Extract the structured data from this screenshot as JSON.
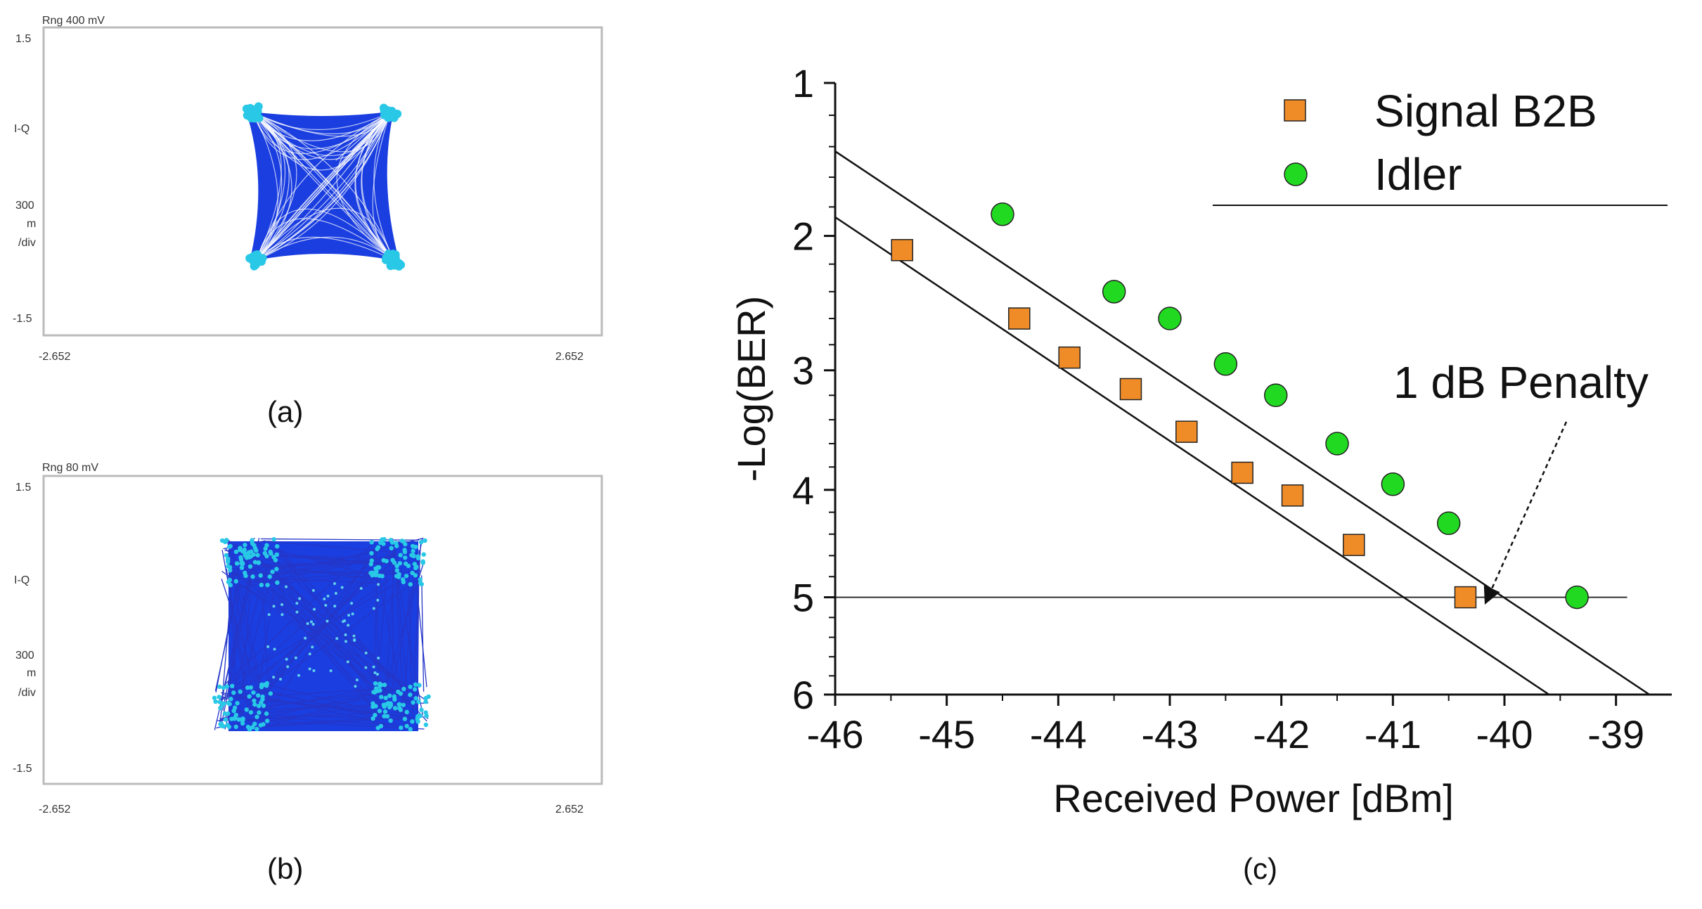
{
  "panel_a": {
    "range_label": "Rng 400 mV",
    "y_top": "1.5",
    "y_bottom": "-1.5",
    "x_left": "-2.652",
    "x_right": "2.652",
    "side_label_1": "I-Q",
    "side_label_2": "300",
    "side_label_3": "m",
    "side_label_4": "/div",
    "caption": "(a)"
  },
  "panel_b": {
    "range_label": "Rng 80 mV",
    "y_top": "1.5",
    "y_bottom": "-1.5",
    "x_left": "-2.652",
    "x_right": "2.652",
    "side_label_1": "I-Q",
    "side_label_2": "300",
    "side_label_3": "m",
    "side_label_4": "/div",
    "caption": "(b)"
  },
  "chart_data": {
    "type": "scatter",
    "title": "",
    "xlabel": "Received Power [dBm]",
    "ylabel": "-Log(BER)",
    "xlim": [
      -46,
      -38.5
    ],
    "ylim": [
      1,
      6
    ],
    "y_tick_labels": [
      "1",
      "2",
      "3",
      "4",
      "5",
      "6"
    ],
    "x_tick_labels": [
      "-46",
      "-45",
      "-44",
      "-43",
      "-42",
      "-41",
      "-40",
      "-39"
    ],
    "legend_position": "top-right",
    "annotation": "1 dB Penalty",
    "threshold": 5,
    "caption": "(c)",
    "series": [
      {
        "name": "Signal B2B",
        "marker": "square",
        "color": "#f08c28",
        "x": [
          -45.4,
          -44.35,
          -43.9,
          -43.35,
          -42.85,
          -42.35,
          -41.9,
          -41.35,
          -40.35
        ],
        "y": [
          2.1,
          2.6,
          2.9,
          3.15,
          3.5,
          3.85,
          4.05,
          4.5,
          5.0
        ],
        "fit_line": {
          "x": [
            -46,
            -39.6
          ],
          "y": [
            1.87,
            6.0
          ]
        }
      },
      {
        "name": "Idler",
        "marker": "circle",
        "color": "#22d922",
        "x": [
          -44.5,
          -43.5,
          -43.0,
          -42.5,
          -42.05,
          -41.5,
          -41.0,
          -40.5,
          -39.35
        ],
        "y": [
          1.85,
          2.4,
          2.6,
          2.95,
          3.2,
          3.6,
          3.95,
          4.3,
          5.0
        ],
        "fit_line": {
          "x": [
            -46,
            -38.7
          ],
          "y": [
            1.43,
            6.0
          ]
        }
      }
    ]
  }
}
